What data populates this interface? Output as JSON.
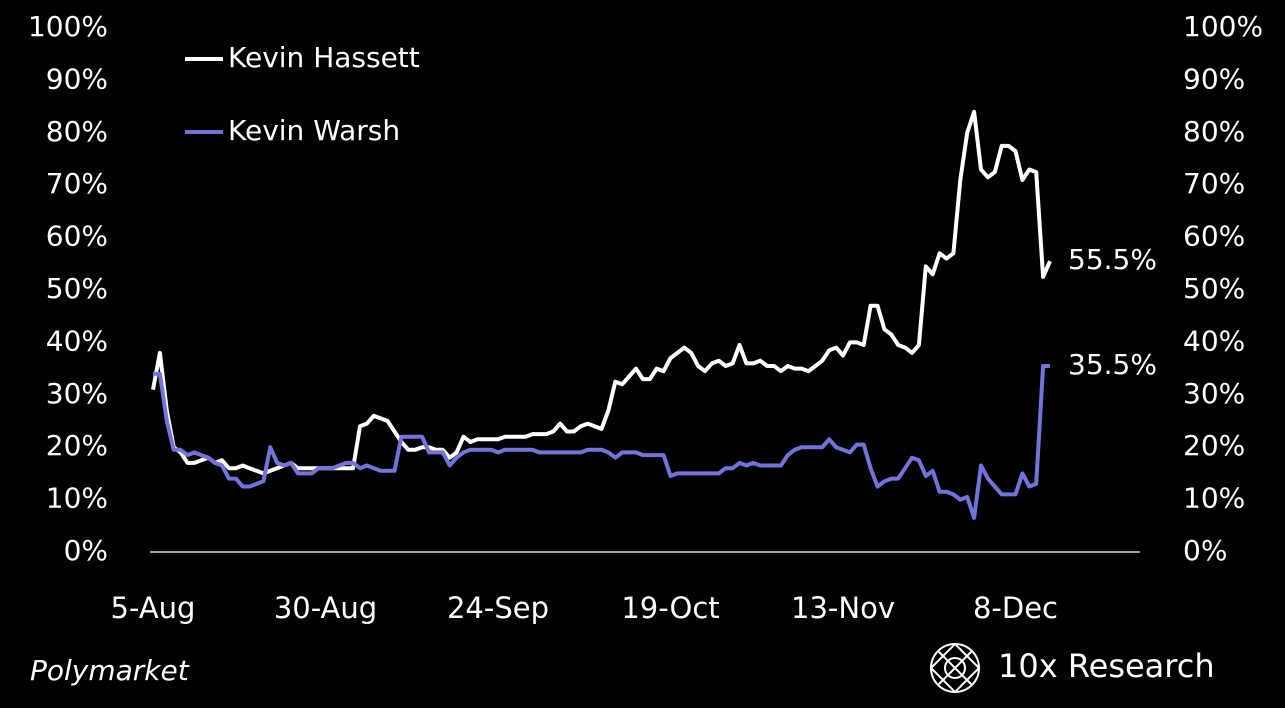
{
  "chart_data": {
    "type": "line",
    "source": "Polymarket",
    "brand": "10x Research",
    "legend": "upper left",
    "grid": false,
    "categories": [
      "5-Aug",
      null,
      null,
      null,
      null,
      null,
      null,
      null,
      null,
      null,
      null,
      null,
      null,
      null,
      null,
      null,
      null,
      null,
      null,
      null,
      null,
      null,
      null,
      null,
      null,
      "30-Aug",
      null,
      null,
      null,
      null,
      null,
      null,
      null,
      null,
      null,
      null,
      null,
      null,
      null,
      null,
      null,
      null,
      null,
      null,
      null,
      null,
      null,
      null,
      null,
      null,
      "24-Sep",
      null,
      null,
      null,
      null,
      null,
      null,
      null,
      null,
      null,
      null,
      null,
      null,
      null,
      null,
      null,
      null,
      null,
      null,
      null,
      null,
      null,
      null,
      null,
      null,
      "19-Oct",
      null,
      null,
      null,
      null,
      null,
      null,
      null,
      null,
      null,
      null,
      null,
      null,
      null,
      null,
      null,
      null,
      null,
      null,
      null,
      null,
      null,
      null,
      null,
      null,
      "13-Nov",
      null,
      null,
      null,
      null,
      null,
      null,
      null,
      null,
      null,
      null,
      null,
      null,
      null,
      null,
      null,
      null,
      null,
      null,
      null,
      null,
      null,
      null,
      null,
      null,
      "8-Dec",
      null,
      null,
      null,
      null,
      null
    ],
    "ylim": [
      0,
      100
    ],
    "yticks": [
      {
        "value": 0,
        "label": "0%"
      },
      {
        "value": 10,
        "label": "10%"
      },
      {
        "value": 20,
        "label": "20%"
      },
      {
        "value": 30,
        "label": "30%"
      },
      {
        "value": 40,
        "label": "40%"
      },
      {
        "value": 50,
        "label": "50%"
      },
      {
        "value": 60,
        "label": "60%"
      },
      {
        "value": 70,
        "label": "70%"
      },
      {
        "value": 80,
        "label": "80%"
      },
      {
        "value": 90,
        "label": "90%"
      },
      {
        "value": 100,
        "label": "100%"
      }
    ],
    "series": [
      {
        "name": "Kevin Hassett",
        "color": "#ffffff",
        "end_label": "55.5%",
        "values": [
          31,
          38,
          27,
          20,
          19,
          17,
          17,
          17.5,
          18,
          17,
          17.5,
          16,
          16,
          16.5,
          16,
          15.5,
          15,
          15.5,
          16,
          16.5,
          17,
          16,
          16,
          16,
          16,
          16,
          16,
          16,
          16,
          16,
          24,
          24.5,
          26,
          25.5,
          25,
          23,
          21,
          19.5,
          19.5,
          20,
          20,
          19.5,
          19.5,
          18,
          19,
          22,
          21,
          21.5,
          21.5,
          21.5,
          21.5,
          22,
          22,
          22,
          22,
          22.5,
          22.5,
          22.5,
          23,
          24.5,
          23,
          23,
          24,
          24.5,
          24,
          23.5,
          27,
          32.5,
          32,
          33.5,
          35,
          33,
          33,
          35,
          34.5,
          37,
          38,
          39,
          38,
          35.5,
          34.5,
          36,
          36.5,
          35.5,
          36,
          39.5,
          36,
          36,
          36.5,
          35.5,
          35.5,
          34.5,
          35.5,
          35,
          35,
          34.5,
          35.5,
          36.5,
          38.5,
          39,
          37.5,
          40,
          40,
          39.5,
          47,
          47,
          42.5,
          41.5,
          39.5,
          39,
          38,
          39.5,
          54.5,
          53,
          57,
          56,
          57,
          71,
          80,
          84,
          73,
          71.5,
          72.5,
          77.5,
          77.5,
          76.5,
          71,
          73,
          72.5,
          52.5,
          55.5
        ]
      },
      {
        "name": "Kevin Warsh",
        "color": "#7373dc",
        "end_label": "35.5%",
        "values": [
          34,
          34,
          25,
          19.5,
          19.5,
          18.5,
          19,
          18.5,
          18,
          17,
          16.5,
          14,
          14,
          12.5,
          12.5,
          13,
          13.5,
          20,
          17,
          16.5,
          17,
          15,
          15,
          15,
          16,
          16,
          16,
          16.5,
          17,
          17,
          16,
          16.5,
          16,
          15.5,
          15.5,
          15.5,
          22,
          22,
          22,
          22,
          19,
          19,
          19,
          16.5,
          18,
          19,
          19.5,
          19.5,
          19.5,
          19.5,
          19,
          19.5,
          19.5,
          19.5,
          19.5,
          19.5,
          19,
          19,
          19,
          19,
          19,
          19,
          19,
          19.5,
          19.5,
          19.5,
          19,
          18,
          19,
          19,
          19,
          18.5,
          18.5,
          18.5,
          18.5,
          14.5,
          15,
          15,
          15,
          15,
          15,
          15,
          15,
          16,
          16,
          17,
          16.5,
          17,
          16.5,
          16.5,
          16.5,
          16.5,
          18.5,
          19.5,
          20,
          20,
          20,
          20,
          21.5,
          20,
          19.5,
          19,
          20.5,
          20.5,
          16,
          12.5,
          13.5,
          14,
          14,
          16,
          18,
          17.5,
          14.5,
          15.5,
          11.5,
          11.5,
          11,
          10,
          10.5,
          6.5,
          16.5,
          14,
          12.5,
          11,
          11,
          11,
          15,
          12.5,
          13,
          35.5,
          35.5
        ]
      }
    ]
  }
}
